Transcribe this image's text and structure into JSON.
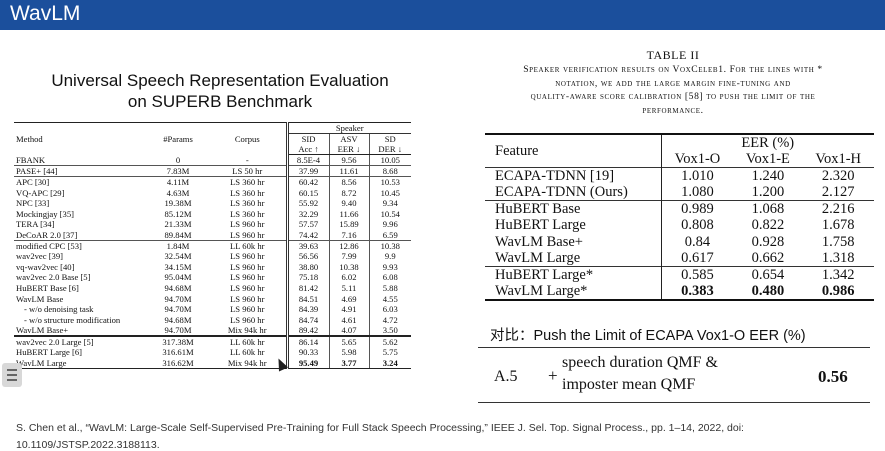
{
  "header": {
    "title": "WavLM"
  },
  "left": {
    "title_line1": "Universal Speech Representation Evaluation",
    "title_line2": "on SUPERB Benchmark",
    "table": {
      "col_method": "Method",
      "col_params": "#Params",
      "col_corpus": "Corpus",
      "col_speaker": "Speaker",
      "sid": "SID",
      "asv": "ASV",
      "sd": "SD",
      "sid_sub": "Acc ↑",
      "asv_sub": "EER ↓",
      "sd_sub": "DER ↓",
      "rows": [
        {
          "method": "FBANK",
          "params": "0",
          "corpus": "-",
          "sid": "8.5E-4",
          "asv": "9.56",
          "sd": "10.05"
        },
        {
          "method": "PASE+ [44]",
          "params": "7.83M",
          "corpus": "LS 50 hr",
          "sid": "37.99",
          "asv": "11.61",
          "sd": "8.68"
        },
        {
          "method": "APC [30]",
          "params": "4.11M",
          "corpus": "LS 360 hr",
          "sid": "60.42",
          "asv": "8.56",
          "sd": "10.53"
        },
        {
          "method": "VQ-APC [29]",
          "params": "4.63M",
          "corpus": "LS 360 hr",
          "sid": "60.15",
          "asv": "8.72",
          "sd": "10.45"
        },
        {
          "method": "NPC [33]",
          "params": "19.38M",
          "corpus": "LS 360 hr",
          "sid": "55.92",
          "asv": "9.40",
          "sd": "9.34"
        },
        {
          "method": "Mockingjay [35]",
          "params": "85.12M",
          "corpus": "LS 360 hr",
          "sid": "32.29",
          "asv": "11.66",
          "sd": "10.54"
        },
        {
          "method": "TERA [34]",
          "params": "21.33M",
          "corpus": "LS 960 hr",
          "sid": "57.57",
          "asv": "15.89",
          "sd": "9.96"
        },
        {
          "method": "DeCoAR 2.0 [37]",
          "params": "89.84M",
          "corpus": "LS 960 hr",
          "sid": "74.42",
          "asv": "7.16",
          "sd": "6.59"
        },
        {
          "method": "modified CPC [53]",
          "params": "1.84M",
          "corpus": "LL 60k hr",
          "sid": "39.63",
          "asv": "12.86",
          "sd": "10.38"
        },
        {
          "method": "wav2vec [39]",
          "params": "32.54M",
          "corpus": "LS 960 hr",
          "sid": "56.56",
          "asv": "7.99",
          "sd": "9.9"
        },
        {
          "method": "vq-wav2vec [40]",
          "params": "34.15M",
          "corpus": "LS 960 hr",
          "sid": "38.80",
          "asv": "10.38",
          "sd": "9.93"
        },
        {
          "method": "wav2vec 2.0 Base [5]",
          "params": "95.04M",
          "corpus": "LS 960 hr",
          "sid": "75.18",
          "asv": "6.02",
          "sd": "6.08"
        },
        {
          "method": "HuBERT Base [6]",
          "params": "94.68M",
          "corpus": "LS 960 hr",
          "sid": "81.42",
          "asv": "5.11",
          "sd": "5.88"
        },
        {
          "method": "WavLM Base",
          "params": "94.70M",
          "corpus": "LS 960 hr",
          "sid": "84.51",
          "asv": "4.69",
          "sd": "4.55"
        },
        {
          "method": "- w/o denoising task",
          "params": "94.70M",
          "corpus": "LS 960 hr",
          "sid": "84.39",
          "asv": "4.91",
          "sd": "6.03"
        },
        {
          "method": "- w/o structure modification",
          "params": "94.68M",
          "corpus": "LS 960 hr",
          "sid": "84.74",
          "asv": "4.61",
          "sd": "4.72"
        },
        {
          "method": "WavLM Base+",
          "params": "94.70M",
          "corpus": "Mix 94k hr",
          "sid": "89.42",
          "asv": "4.07",
          "sd": "3.50"
        },
        {
          "method": "wav2vec 2.0 Large [5]",
          "params": "317.38M",
          "corpus": "LL 60k hr",
          "sid": "86.14",
          "asv": "5.65",
          "sd": "5.62"
        },
        {
          "method": "HuBERT Large [6]",
          "params": "316.61M",
          "corpus": "LL 60k hr",
          "sid": "90.33",
          "asv": "5.98",
          "sd": "5.75"
        },
        {
          "method": "WavLM Large",
          "params": "316.62M",
          "corpus": "Mix 94k hr",
          "sid": "95.49",
          "asv": "3.77",
          "sd": "3.24"
        }
      ]
    }
  },
  "right": {
    "table_label": "TABLE II",
    "caption_line1": "Speaker verification results on VoxCeleb1. For the lines with *",
    "caption_line2": "notation, we add the large margin fine-tuning and",
    "caption_line3": "quality-aware score calibration [58] to push the limit of the",
    "caption_line4": "performance.",
    "table": {
      "col_feature": "Feature",
      "eer_header": "EER (%)",
      "col_o": "Vox1-O",
      "col_e": "Vox1-E",
      "col_h": "Vox1-H",
      "rows": [
        {
          "feature": "ECAPA-TDNN [19]",
          "o": "1.010",
          "e": "1.240",
          "h": "2.320"
        },
        {
          "feature": "ECAPA-TDNN (Ours)",
          "o": "1.080",
          "e": "1.200",
          "h": "2.127"
        },
        {
          "feature": "HuBERT Base",
          "o": "0.989",
          "e": "1.068",
          "h": "2.216"
        },
        {
          "feature": "HuBERT Large",
          "o": "0.808",
          "e": "0.822",
          "h": "1.678"
        },
        {
          "feature": "WavLM Base+",
          "o": "0.84",
          "e": "0.928",
          "h": "1.758"
        },
        {
          "feature": "WavLM Large",
          "o": "0.617",
          "e": "0.662",
          "h": "1.318"
        },
        {
          "feature": "HuBERT Large*",
          "o": "0.585",
          "e": "0.654",
          "h": "1.342"
        },
        {
          "feature": "WavLM Large*",
          "o": "0.383",
          "e": "0.480",
          "h": "0.986"
        }
      ]
    },
    "comparison_note": "对比：Push the Limit of ECAPA Vox1-O EER (%)",
    "a5": {
      "label": "A.5",
      "plus": "+",
      "line1": "speech duration QMF &",
      "line2": "imposter mean QMF",
      "value": "0.56"
    }
  },
  "citation": {
    "line1": "S. Chen et al.,   “WavLM: Large-Scale Self-Supervised Pre-Training for Full Stack Speech Processing,”   IEEE J. Sel. Top. Signal Process., pp. 1–14, 2022, doi:",
    "line2": "10.1109/JSTSP.2022.3188113."
  },
  "colors": {
    "header_bar": "#1b4f9c",
    "header_text": "#ffffff"
  }
}
